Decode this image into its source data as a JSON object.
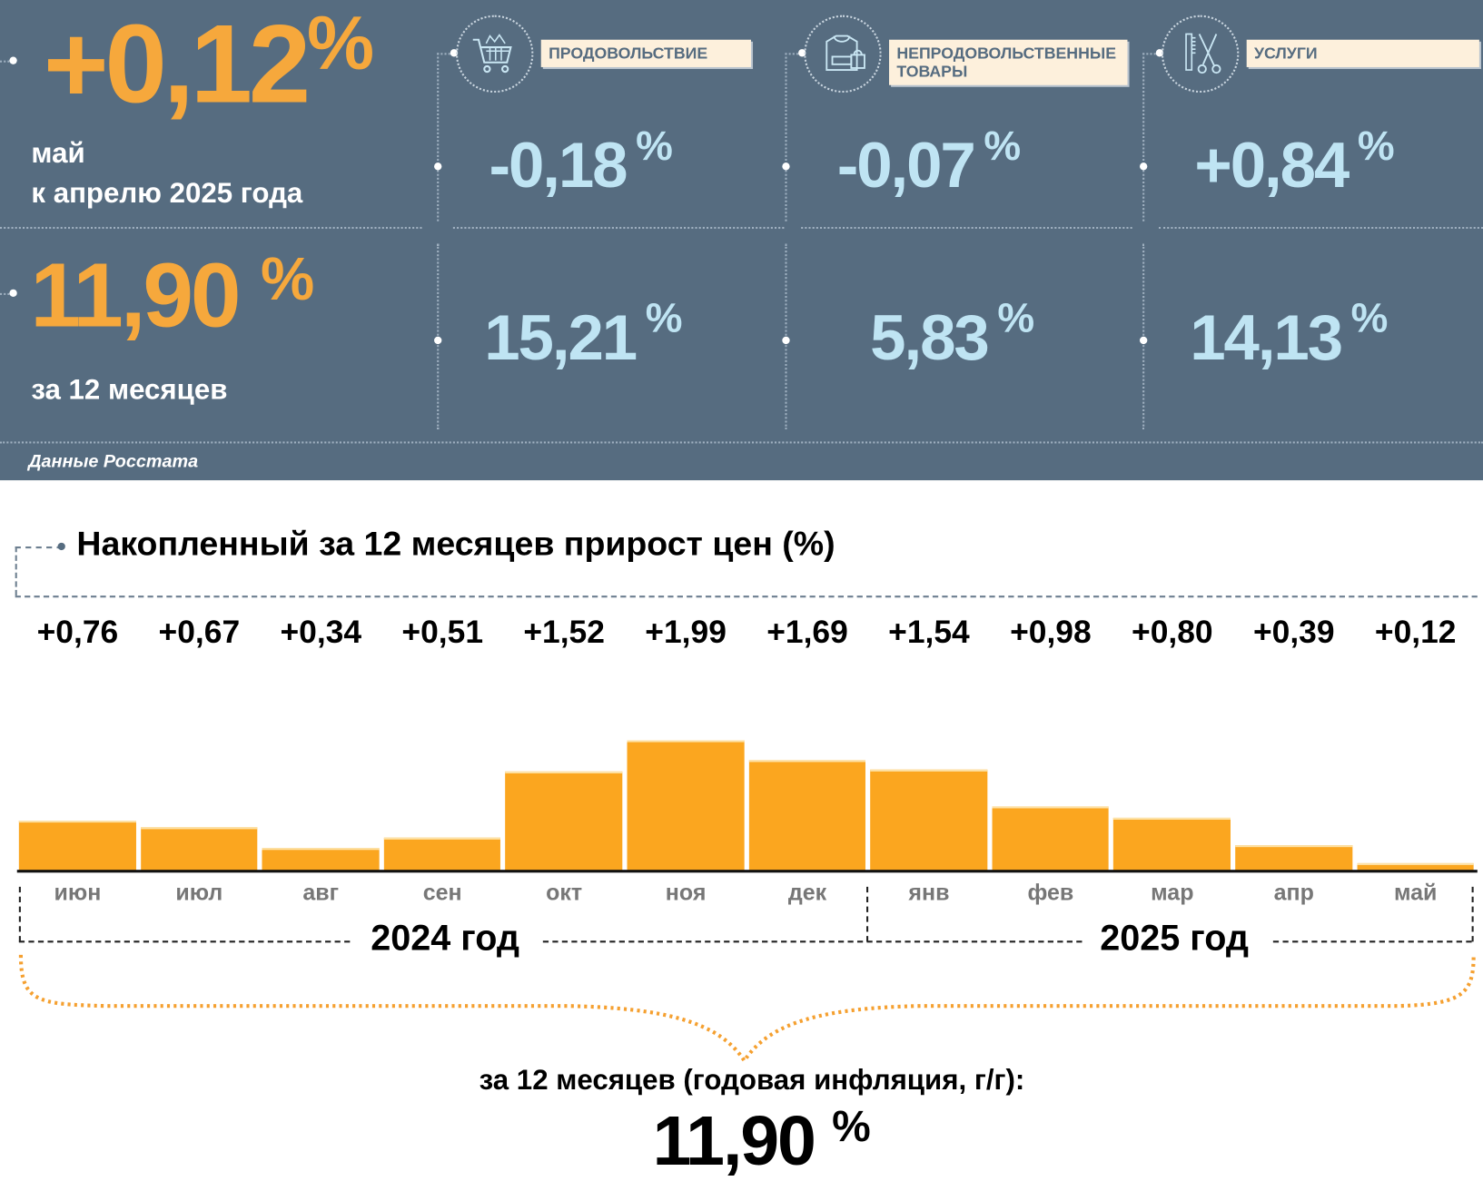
{
  "summary": {
    "monthly_value": "+0,12",
    "pct": "%",
    "monthly_label_1": "май",
    "monthly_label_2": "к апрелю 2025 года",
    "annual_value": "11,90",
    "annual_label": "за 12 месяцев",
    "source": "Данные Росстата"
  },
  "categories": [
    {
      "label": "ПРОДОВОЛЬСТВИЕ",
      "icon": "shopping-cart-icon",
      "monthly": "-0,18",
      "annual": "15,21"
    },
    {
      "label": "НЕПРОДОВОЛЬСТВЕННЫЕ ТОВАРЫ",
      "icon": "clothing-bag-icon",
      "monthly": "-0,07",
      "annual": "5,83"
    },
    {
      "label": "УСЛУГИ",
      "icon": "comb-scissors-icon",
      "monthly": "+0,84",
      "annual": "14,13"
    }
  ],
  "chart_data": {
    "type": "bar",
    "title": "Накопленный за 12 месяцев прирост цен (%)",
    "categories": [
      "июн",
      "июл",
      "авг",
      "сен",
      "окт",
      "ноя",
      "дек",
      "янв",
      "фев",
      "мар",
      "апр",
      "май"
    ],
    "values": [
      0.76,
      0.67,
      0.34,
      0.51,
      1.52,
      1.99,
      1.69,
      1.54,
      0.98,
      0.8,
      0.39,
      0.12
    ],
    "value_labels": [
      "+0,76",
      "+0,67",
      "+0,34",
      "+0,51",
      "+1,52",
      "+1,99",
      "+1,69",
      "+1,54",
      "+0,98",
      "+0,80",
      "+0,39",
      "+0,12"
    ],
    "year_groups": [
      "2024 год",
      "2025 год"
    ],
    "ylim": [
      0,
      2.2
    ],
    "color": "#fba61f"
  },
  "footer": {
    "caption": "за 12 месяцев (годовая инфляция, г/г):",
    "value": "11,90",
    "pct": "%"
  }
}
